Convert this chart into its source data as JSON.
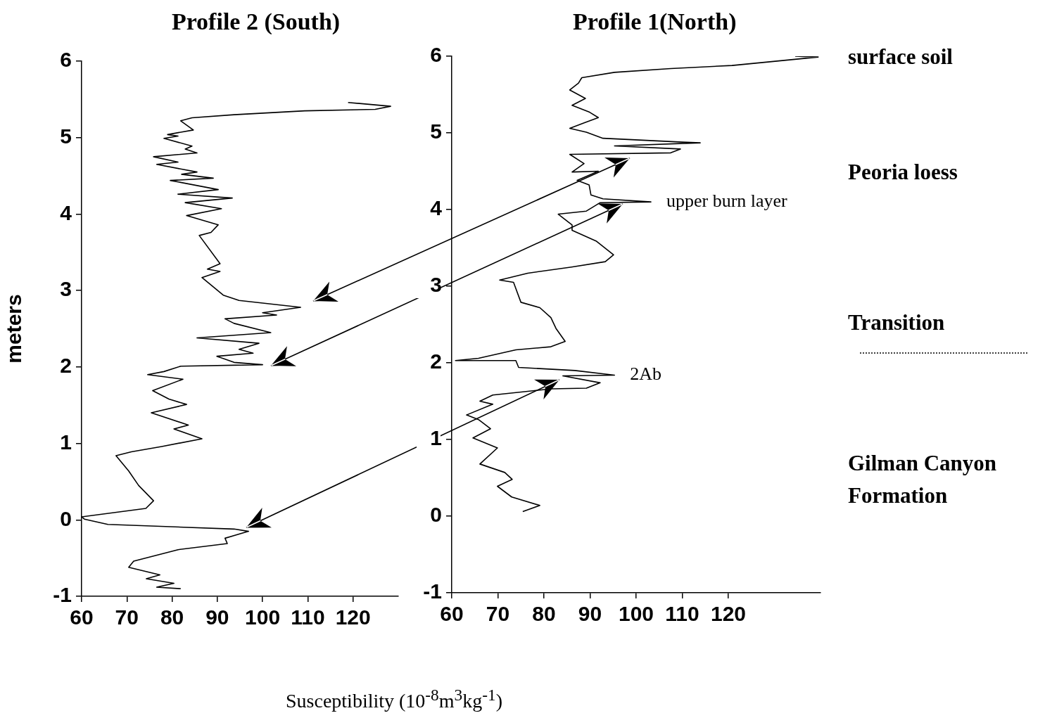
{
  "chart_data": [
    {
      "type": "line",
      "title": "Profile 2 (South)",
      "xlabel": "Susceptibility (10$^{-8}$m$^{3}$kg$^{-1}$)",
      "ylabel": "meters",
      "xlim": [
        60,
        130
      ],
      "ylim": [
        -1,
        6
      ],
      "xticks": [
        60,
        70,
        80,
        90,
        100,
        110,
        120
      ],
      "yticks": [
        -1,
        0,
        1,
        2,
        3,
        4,
        5,
        6
      ],
      "grid": false,
      "legend": false,
      "marker": "none",
      "line_style": "solid",
      "series": [
        {
          "color": "#000000",
          "x": [
            118.9,
            128.3,
            124.9,
            109.3,
            93.7,
            84.4,
            81.9,
            84.7,
            79.0,
            81.3,
            78.2,
            84.4,
            82.9,
            85.5,
            75.9,
            81.3,
            76.6,
            85.5,
            82.1,
            89.1,
            79.6,
            90.2,
            81.3,
            93.3,
            82.9,
            90.9,
            83.2,
            90.2,
            88.6,
            86.0,
            90.6,
            87.8,
            90.6,
            86.6,
            91.3,
            94.8,
            108.4,
            100.0,
            103.1,
            91.7,
            93.7,
            101.8,
            85.5,
            99.2,
            94.8,
            97.9,
            89.9,
            93.7,
            100.0,
            81.9,
            78.2,
            74.6,
            82.4,
            75.7,
            79.3,
            83.2,
            75.4,
            83.6,
            80.4,
            86.6,
            77.7,
            71.0,
            67.6,
            70.4,
            72.6,
            75.9,
            74.2,
            60.0,
            60.6,
            65.8,
            93.7,
            96.9,
            91.7,
            92.2,
            81.3,
            71.5,
            70.4,
            77.3,
            74.3,
            80.4,
            76.6,
            81.9
          ],
          "values": [
            5.46,
            5.41,
            5.37,
            5.35,
            5.3,
            5.26,
            5.22,
            5.1,
            5.04,
            5.02,
            4.99,
            4.89,
            4.85,
            4.8,
            4.75,
            4.68,
            4.65,
            4.55,
            4.52,
            4.47,
            4.44,
            4.32,
            4.26,
            4.21,
            4.15,
            4.07,
            3.98,
            3.86,
            3.76,
            3.72,
            3.35,
            3.28,
            3.25,
            3.17,
            2.94,
            2.87,
            2.78,
            2.71,
            2.68,
            2.63,
            2.57,
            2.45,
            2.38,
            2.31,
            2.23,
            2.18,
            2.14,
            2.06,
            2.03,
            2.01,
            1.94,
            1.9,
            1.84,
            1.69,
            1.58,
            1.51,
            1.4,
            1.24,
            1.19,
            1.06,
            0.96,
            0.89,
            0.84,
            0.64,
            0.45,
            0.25,
            0.15,
            0.04,
            0.01,
            -0.06,
            -0.12,
            -0.15,
            -0.24,
            -0.31,
            -0.39,
            -0.54,
            -0.62,
            -0.72,
            -0.77,
            -0.83,
            -0.88,
            -0.9
          ]
        }
      ]
    },
    {
      "type": "line",
      "title": "Profile 1(North)",
      "xlim": [
        60,
        140
      ],
      "ylim": [
        -1,
        6
      ],
      "xticks": [
        60,
        70,
        80,
        90,
        100,
        110,
        120
      ],
      "yticks": [
        -1,
        0,
        1,
        2,
        3,
        4,
        5,
        6
      ],
      "grid": false,
      "legend": false,
      "marker": "none",
      "line_style": "solid",
      "annotations": [
        {
          "text": "upper burn layer",
          "x": 103.2,
          "y": 4.1
        },
        {
          "text": "2Ab",
          "x": 95.3,
          "y": 1.84
        },
        "surface soil",
        "Peoria loess",
        "Transition",
        "Gilman Canyon Formation"
      ],
      "series": [
        {
          "color": "#000000",
          "x": [
            134.5,
            139.5,
            120.8,
            107.5,
            95.3,
            88.2,
            87.5,
            85.6,
            89.0,
            86.1,
            89.9,
            91.8,
            88.7,
            85.6,
            89.2,
            92.8,
            110.1,
            113.9,
            95.3,
            109.6,
            107.5,
            85.6,
            88.7,
            86.1,
            91.8,
            87.2,
            89.8,
            90.2,
            92.8,
            103.2,
            92.2,
            89.2,
            83.1,
            86.1,
            86.1,
            91.3,
            95.1,
            93.3,
            86.0,
            76.5,
            70.4,
            73.4,
            75.0,
            79.1,
            81.5,
            82.6,
            84.6,
            81.5,
            73.9,
            65.8,
            60.8,
            73.9,
            74.5,
            86.7,
            95.3,
            84.1,
            92.2,
            89.2,
            81.5,
            68.9,
            66.1,
            68.9,
            63.2,
            65.8,
            68.4,
            64.6,
            69.9,
            66.1,
            71.5,
            73.1,
            69.9,
            73.0,
            79.1,
            75.4
          ],
          "values": [
            6.0,
            5.99,
            5.88,
            5.84,
            5.79,
            5.72,
            5.65,
            5.56,
            5.45,
            5.36,
            5.27,
            5.2,
            5.13,
            5.06,
            5.01,
            4.93,
            4.88,
            4.87,
            4.83,
            4.79,
            4.74,
            4.72,
            4.6,
            4.49,
            4.5,
            4.38,
            4.32,
            4.19,
            4.14,
            4.1,
            4.09,
            3.98,
            3.94,
            3.8,
            3.73,
            3.59,
            3.41,
            3.32,
            3.25,
            3.17,
            3.08,
            3.05,
            2.79,
            2.72,
            2.59,
            2.45,
            2.28,
            2.21,
            2.17,
            2.06,
            2.03,
            2.03,
            1.94,
            1.9,
            1.84,
            1.83,
            1.74,
            1.67,
            1.66,
            1.58,
            1.5,
            1.46,
            1.32,
            1.26,
            1.14,
            1.02,
            0.89,
            0.68,
            0.57,
            0.48,
            0.39,
            0.25,
            0.14,
            0.06
          ]
        }
      ]
    }
  ]
}
